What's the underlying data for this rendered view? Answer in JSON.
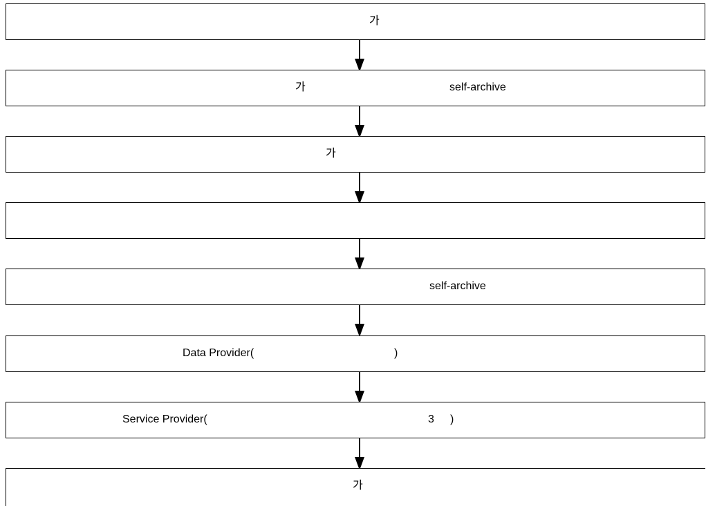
{
  "steps": [
    {
      "texts": [
        "가"
      ]
    },
    {
      "texts": [
        "가",
        "self-archive"
      ]
    },
    {
      "texts": [
        "가"
      ]
    },
    {
      "texts": []
    },
    {
      "texts": [
        "self-archive"
      ]
    },
    {
      "texts": [
        "Data Provider(",
        ")"
      ]
    },
    {
      "texts": [
        "Service Provider(",
        "3",
        ")"
      ]
    },
    {
      "texts": [
        "가"
      ]
    }
  ]
}
